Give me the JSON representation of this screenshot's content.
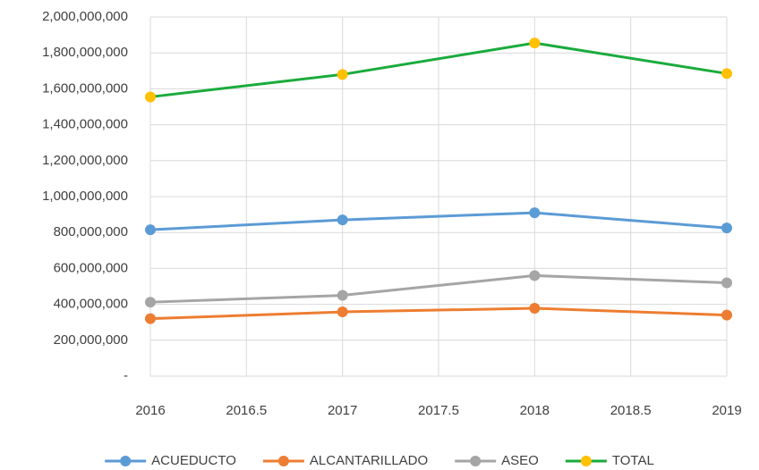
{
  "chart_data": {
    "type": "line",
    "x": [
      2016,
      2017,
      2018,
      2019
    ],
    "xlim": [
      2016,
      2019
    ],
    "xticks": [
      2016,
      2016.5,
      2017,
      2017.5,
      2018,
      2018.5,
      2019
    ],
    "ylim": [
      0,
      2000000000
    ],
    "yticks": [
      {
        "value": 0,
        "label": "-"
      },
      {
        "value": 200000000,
        "label": "200,000,000"
      },
      {
        "value": 400000000,
        "label": "400,000,000"
      },
      {
        "value": 600000000,
        "label": "600,000,000"
      },
      {
        "value": 800000000,
        "label": "800,000,000"
      },
      {
        "value": 1000000000,
        "label": "1,000,000,000"
      },
      {
        "value": 1200000000,
        "label": "1,200,000,000"
      },
      {
        "value": 1400000000,
        "label": "1,400,000,000"
      },
      {
        "value": 1600000000,
        "label": "1,600,000,000"
      },
      {
        "value": 1800000000,
        "label": "1,800,000,000"
      },
      {
        "value": 2000000000,
        "label": "2,000,000,000"
      }
    ],
    "grid": true,
    "legend": "bottom",
    "series": [
      {
        "name": "ACUEDUCTO",
        "color": "#5b9bd5",
        "marker_color": "#5b9bd5",
        "values": [
          815000000,
          870000000,
          910000000,
          825000000
        ]
      },
      {
        "name": "ALCANTARILLADO",
        "color": "#ed7d31",
        "marker_color": "#ed7d31",
        "values": [
          320000000,
          358000000,
          378000000,
          340000000
        ]
      },
      {
        "name": "ASEO",
        "color": "#a5a5a5",
        "marker_color": "#a5a5a5",
        "values": [
          412000000,
          450000000,
          560000000,
          520000000
        ]
      },
      {
        "name": "TOTAL",
        "color": "#1aab3c",
        "marker_color": "#ffc000",
        "values": [
          1555000000,
          1680000000,
          1855000000,
          1685000000
        ]
      }
    ]
  }
}
